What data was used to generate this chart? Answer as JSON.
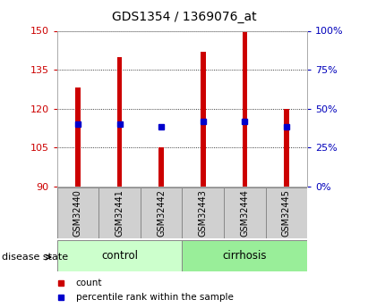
{
  "title": "GDS1354 / 1369076_at",
  "samples": [
    "GSM32440",
    "GSM32441",
    "GSM32442",
    "GSM32443",
    "GSM32444",
    "GSM32445"
  ],
  "bar_bottoms": [
    90,
    90,
    90,
    90,
    90,
    90
  ],
  "bar_tops": [
    128,
    140,
    105,
    142,
    150,
    120
  ],
  "percentile_values": [
    114,
    114,
    113,
    115,
    115,
    113
  ],
  "ylim_left": [
    90,
    150
  ],
  "ylim_right": [
    0,
    100
  ],
  "yticks_left": [
    90,
    105,
    120,
    135,
    150
  ],
  "yticks_right": [
    0,
    25,
    50,
    75,
    100
  ],
  "ytick_labels_right": [
    "0%",
    "25%",
    "50%",
    "75%",
    "100%"
  ],
  "bar_color": "#cc0000",
  "dot_color": "#0000cc",
  "bar_width": 0.12,
  "groups": [
    {
      "label": "control",
      "samples_idx": [
        0,
        1,
        2
      ],
      "color": "#ccffcc"
    },
    {
      "label": "cirrhosis",
      "samples_idx": [
        3,
        4,
        5
      ],
      "color": "#99ee99"
    }
  ],
  "disease_state_label": "disease state",
  "legend_items": [
    {
      "label": "count",
      "color": "#cc0000"
    },
    {
      "label": "percentile rank within the sample",
      "color": "#0000cc"
    }
  ],
  "tick_color_left": "#cc0000",
  "tick_color_right": "#0000bb"
}
